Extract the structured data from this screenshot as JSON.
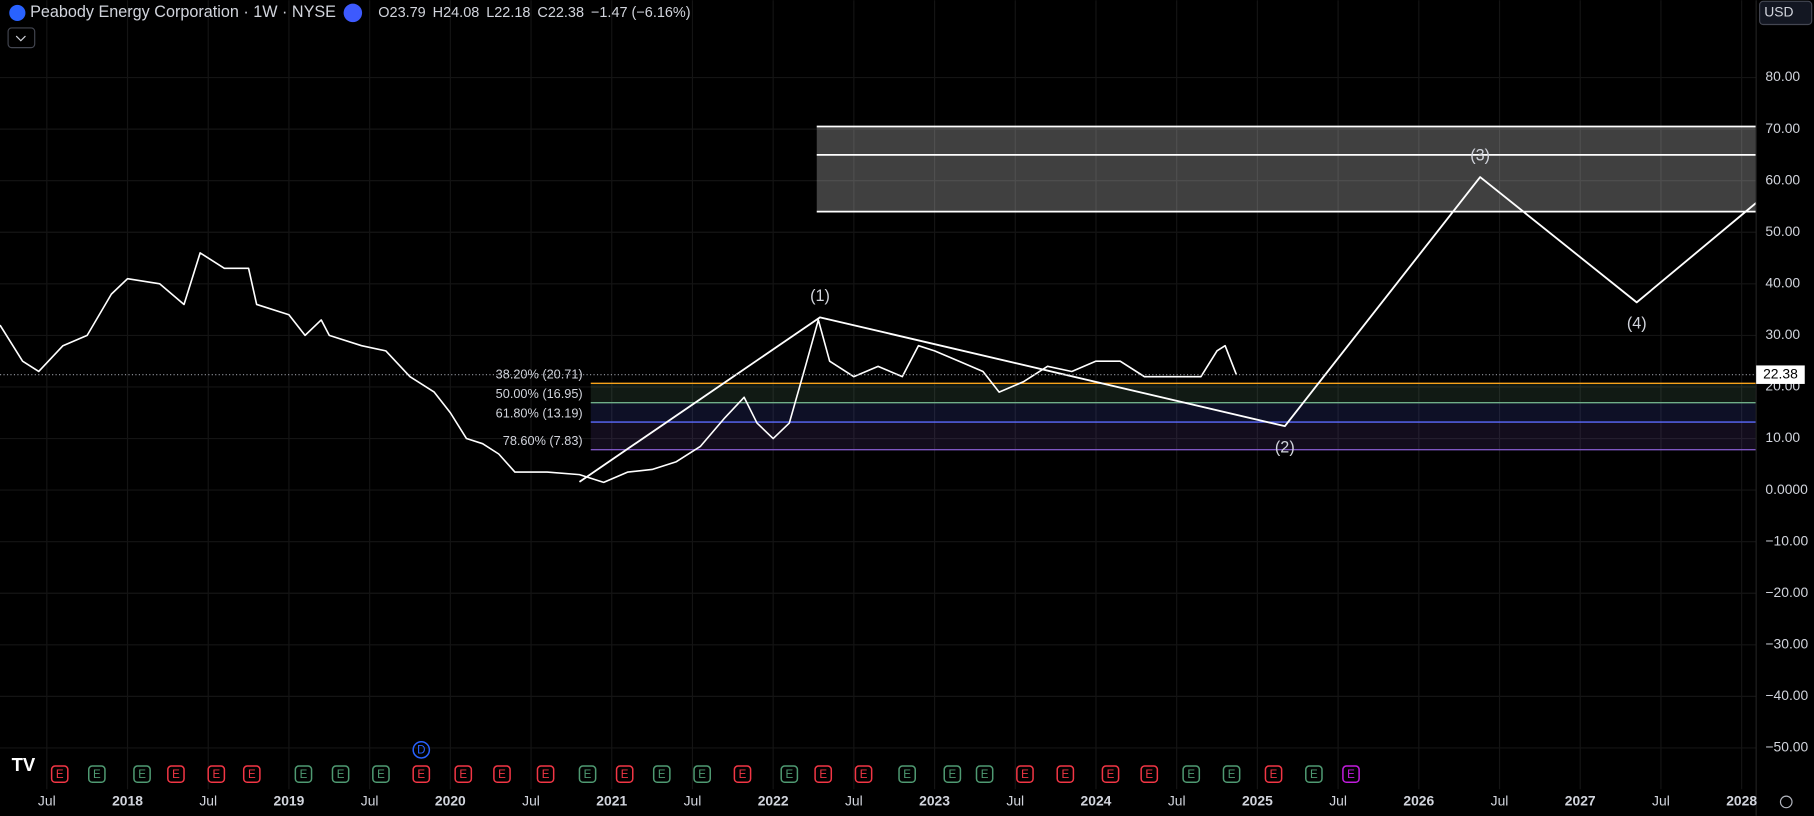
{
  "header": {
    "symbol": "Peabody Energy Corporation · 1W · NYSE",
    "ohlc": [
      {
        "key": "O",
        "value": "23.79"
      },
      {
        "key": "H",
        "value": "24.08"
      },
      {
        "key": "L",
        "value": "22.18"
      },
      {
        "key": "C",
        "value": "22.38"
      }
    ],
    "change": "−1.47 (−6.16%)",
    "currency": "USD"
  },
  "chart_data": {
    "type": "line",
    "xlim": [
      2017.21,
      2028.09
    ],
    "ylim": [
      -58,
      95
    ],
    "grid": true,
    "xticks": [
      {
        "value": 2017.5,
        "label": "Jul"
      },
      2018,
      {
        "value": 2018.5,
        "label": "Jul"
      },
      2019,
      {
        "value": 2019.5,
        "label": "Jul"
      },
      2020,
      {
        "value": 2020.5,
        "label": "Jul"
      },
      2021,
      {
        "value": 2021.5,
        "label": "Jul"
      },
      2022,
      {
        "value": 2022.5,
        "label": "Jul"
      },
      2023,
      {
        "value": 2023.5,
        "label": "Jul"
      },
      2024,
      {
        "value": 2024.5,
        "label": "Jul"
      },
      2025,
      {
        "value": 2025.5,
        "label": "Jul"
      },
      2026,
      {
        "value": 2026.5,
        "label": "Jul"
      },
      2027,
      {
        "value": 2027.5,
        "label": "Jul"
      },
      2028
    ],
    "yticks": [
      {
        "value": -50,
        "label": "−50.00"
      },
      {
        "value": -40,
        "label": "−40.00"
      },
      {
        "value": -30,
        "label": "−30.00"
      },
      {
        "value": -20,
        "label": "−20.00"
      },
      {
        "value": -10,
        "label": "−10.00"
      },
      {
        "value": 0,
        "label": "0.0000"
      },
      {
        "value": 10,
        "label": "10.00"
      },
      {
        "value": 20,
        "label": "20.00"
      },
      {
        "value": 30,
        "label": "30.00"
      },
      {
        "value": 40,
        "label": "40.00"
      },
      {
        "value": 50,
        "label": "50.00"
      },
      {
        "value": 60,
        "label": "60.00"
      },
      {
        "value": 70,
        "label": "70.00"
      },
      {
        "value": 80,
        "label": "80.00"
      }
    ],
    "series": [
      {
        "color": "#ffffff",
        "x": [
          2017.21,
          2017.35,
          2017.45,
          2017.6,
          2017.75,
          2017.9,
          2018.0,
          2018.2,
          2018.35,
          2018.45,
          2018.6,
          2018.75,
          2018.8,
          2019.0,
          2019.1,
          2019.2,
          2019.25,
          2019.45,
          2019.6,
          2019.75,
          2019.9,
          2020.0,
          2020.1,
          2020.2,
          2020.3,
          2020.4,
          2020.6,
          2020.8,
          2020.95,
          2021.1,
          2021.25,
          2021.4,
          2021.55,
          2021.7,
          2021.82,
          2021.9,
          2022.0,
          2022.1,
          2022.2,
          2022.28,
          2022.35,
          2022.5,
          2022.65,
          2022.8,
          2022.9,
          2023.0,
          2023.15,
          2023.3,
          2023.4,
          2023.55,
          2023.7,
          2023.85,
          2024.0,
          2024.15,
          2024.3,
          2024.5,
          2024.65,
          2024.75,
          2024.8,
          2024.87
        ],
        "values": [
          32,
          25,
          23,
          28,
          30,
          38,
          41,
          40,
          36,
          46,
          43,
          43,
          36,
          34,
          30,
          33,
          30,
          28,
          27,
          22,
          19,
          15,
          10,
          9,
          7,
          3.5,
          3.5,
          3,
          1.5,
          3.5,
          4,
          5.5,
          8.5,
          14,
          18,
          13,
          10,
          13,
          24,
          33,
          25,
          22,
          24,
          22,
          28,
          27,
          25,
          23,
          19,
          21,
          24,
          23,
          25,
          25,
          22,
          22,
          22,
          27,
          28,
          22.38
        ]
      },
      {
        "color": "#ffffff",
        "x": [
          2020.8,
          2022.29,
          2025.17,
          2026.38,
          2027.35,
          2028.09
        ],
        "values": [
          1.6,
          33.5,
          12.4,
          60.7,
          36.4,
          55.7
        ],
        "point_labels": [
          null,
          "(1)",
          "(2)",
          "(3)",
          "(4)",
          null
        ]
      }
    ],
    "zone": {
      "x0": 2022.27,
      "levels": [
        70.5,
        65,
        54
      ],
      "color": "#ffffff"
    },
    "fib": {
      "x0": 2020.87,
      "levels": [
        {
          "value": 20.71,
          "label": "38.20% (20.71)",
          "color": "#f7a21b"
        },
        {
          "value": 16.95,
          "label": "50.00% (16.95)",
          "color": "#6fae88"
        },
        {
          "value": 13.19,
          "label": "61.80% (13.19)",
          "color": "#5c6bff"
        },
        {
          "value": 7.83,
          "label": "78.60% (7.83)",
          "color": "#7e57c2"
        }
      ]
    },
    "events": [
      {
        "x": 2017.58,
        "label": "E",
        "color": "#f23645"
      },
      {
        "x": 2017.81,
        "label": "E",
        "color": "#4f9a72"
      },
      {
        "x": 2018.09,
        "label": "E",
        "color": "#4f9a72"
      },
      {
        "x": 2018.3,
        "label": "E",
        "color": "#f23645"
      },
      {
        "x": 2018.55,
        "label": "E",
        "color": "#f23645"
      },
      {
        "x": 2018.77,
        "label": "E",
        "color": "#f23645"
      },
      {
        "x": 2019.09,
        "label": "E",
        "color": "#4f9a72"
      },
      {
        "x": 2019.32,
        "label": "E",
        "color": "#4f9a72"
      },
      {
        "x": 2019.57,
        "label": "E",
        "color": "#4f9a72"
      },
      {
        "x": 2019.82,
        "label": "E",
        "color": "#f23645"
      },
      {
        "x": 2020.08,
        "label": "E",
        "color": "#f23645"
      },
      {
        "x": 2020.32,
        "label": "E",
        "color": "#f23645"
      },
      {
        "x": 2020.59,
        "label": "E",
        "color": "#f23645"
      },
      {
        "x": 2020.85,
        "label": "E",
        "color": "#4f9a72"
      },
      {
        "x": 2021.08,
        "label": "E",
        "color": "#f23645"
      },
      {
        "x": 2021.31,
        "label": "E",
        "color": "#4f9a72"
      },
      {
        "x": 2021.56,
        "label": "E",
        "color": "#4f9a72"
      },
      {
        "x": 2021.81,
        "label": "E",
        "color": "#f23645"
      },
      {
        "x": 2022.1,
        "label": "E",
        "color": "#4f9a72"
      },
      {
        "x": 2022.31,
        "label": "E",
        "color": "#f23645"
      },
      {
        "x": 2022.56,
        "label": "E",
        "color": "#f23645"
      },
      {
        "x": 2022.83,
        "label": "E",
        "color": "#4f9a72"
      },
      {
        "x": 2023.11,
        "label": "E",
        "color": "#4f9a72"
      },
      {
        "x": 2023.31,
        "label": "E",
        "color": "#4f9a72"
      },
      {
        "x": 2023.56,
        "label": "E",
        "color": "#f23645"
      },
      {
        "x": 2023.81,
        "label": "E",
        "color": "#f23645"
      },
      {
        "x": 2024.09,
        "label": "E",
        "color": "#f23645"
      },
      {
        "x": 2024.33,
        "label": "E",
        "color": "#f23645"
      },
      {
        "x": 2024.59,
        "label": "E",
        "color": "#4f9a72"
      },
      {
        "x": 2024.84,
        "label": "E",
        "color": "#4f9a72"
      },
      {
        "x": 2025.1,
        "label": "E",
        "color": "#f23645"
      },
      {
        "x": 2025.35,
        "label": "E",
        "color": "#4f9a72"
      },
      {
        "x": 2025.58,
        "label": "E",
        "color": "#c21cde"
      }
    ],
    "dividends": [
      {
        "x": 2019.82,
        "label": "D",
        "color": "#2962ff"
      }
    ]
  }
}
